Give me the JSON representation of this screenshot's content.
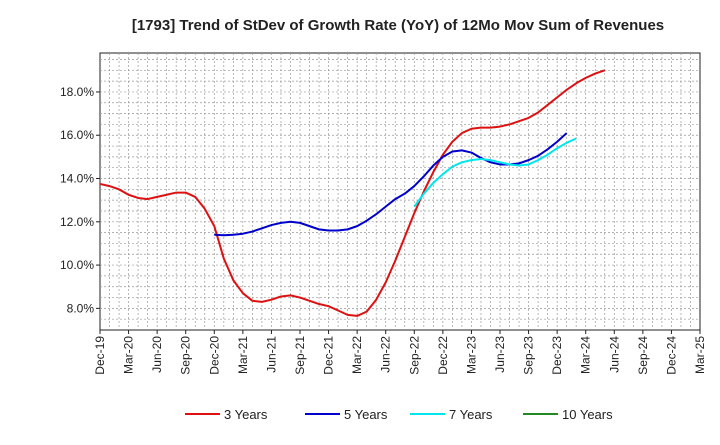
{
  "chart_data": {
    "type": "line",
    "title": "[1793]  Trend of StDev of Growth Rate (YoY) of 12Mo Mov Sum of Revenues",
    "xlabel": "",
    "ylabel": "",
    "ylim": [
      7.0,
      19.8
    ],
    "yticks": [
      8.0,
      10.0,
      12.0,
      14.0,
      16.0,
      18.0
    ],
    "ytick_labels": [
      "8.0%",
      "10.0%",
      "12.0%",
      "14.0%",
      "16.0%",
      "18.0%"
    ],
    "grid": true,
    "legend_position": "bottom",
    "x_start": "Dec-19",
    "x_ticks": [
      "Dec-19",
      "Mar-20",
      "Jun-20",
      "Sep-20",
      "Dec-20",
      "Mar-21",
      "Jun-21",
      "Sep-21",
      "Dec-21",
      "Mar-22",
      "Jun-22",
      "Sep-22",
      "Dec-22",
      "Mar-23",
      "Jun-23",
      "Sep-23",
      "Dec-23",
      "Mar-24",
      "Jun-24",
      "Sep-24",
      "Dec-24",
      "Mar-25"
    ],
    "series": [
      {
        "name": "3 Years",
        "color": "#dd1111",
        "start_index": 0,
        "values": [
          13.75,
          13.65,
          13.5,
          13.25,
          13.1,
          13.05,
          13.15,
          13.25,
          13.35,
          13.35,
          13.15,
          12.6,
          11.8,
          10.3,
          9.3,
          8.7,
          8.35,
          8.3,
          8.4,
          8.55,
          8.6,
          8.5,
          8.35,
          8.2,
          8.1,
          7.9,
          7.7,
          7.65,
          7.85,
          8.4,
          9.2,
          10.2,
          11.3,
          12.4,
          13.4,
          14.3,
          15.1,
          15.7,
          16.1,
          16.3,
          16.35,
          16.35,
          16.4,
          16.5,
          16.65,
          16.8,
          17.05,
          17.4,
          17.75,
          18.1,
          18.4,
          18.65,
          18.85,
          19.0
        ]
      },
      {
        "name": "5 Years",
        "color": "#0000cc",
        "start_index": 12,
        "values": [
          11.4,
          11.38,
          11.4,
          11.45,
          11.55,
          11.7,
          11.85,
          11.95,
          12.0,
          11.95,
          11.8,
          11.65,
          11.6,
          11.6,
          11.65,
          11.8,
          12.05,
          12.35,
          12.7,
          13.05,
          13.3,
          13.65,
          14.1,
          14.6,
          15.0,
          15.25,
          15.3,
          15.2,
          14.95,
          14.75,
          14.65,
          14.65,
          14.7,
          14.85,
          15.05,
          15.35,
          15.7,
          16.1
        ]
      },
      {
        "name": "7 Years",
        "color": "#00e5ee",
        "start_index": 33,
        "values": [
          12.7,
          13.3,
          13.8,
          14.2,
          14.55,
          14.75,
          14.85,
          14.9,
          14.85,
          14.75,
          14.65,
          14.6,
          14.65,
          14.85,
          15.1,
          15.4,
          15.65,
          15.85
        ]
      },
      {
        "name": "10 Years",
        "color": "#228822",
        "start_index": 0,
        "values": []
      }
    ]
  }
}
